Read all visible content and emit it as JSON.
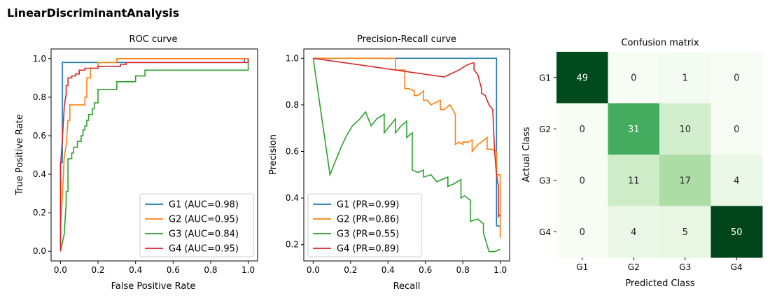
{
  "suptitle": "LinearDiscriminantAnalysis",
  "colors": {
    "G1": "#1f77b4",
    "G2": "#ff7f0e",
    "G3": "#2ca02c",
    "G4": "#d62728"
  },
  "chart_data": [
    {
      "type": "line",
      "title": "ROC curve",
      "xlabel": "False Positive Rate",
      "ylabel": "True Positive Rate",
      "xlim": [
        -0.05,
        1.05
      ],
      "ylim": [
        -0.05,
        1.05
      ],
      "xticks": [
        "0.0",
        "0.2",
        "0.4",
        "0.6",
        "0.8",
        "1.0"
      ],
      "yticks": [
        "0.0",
        "0.2",
        "0.4",
        "0.6",
        "0.8",
        "1.0"
      ],
      "legend_position": "lower right",
      "series": [
        {
          "name": "G1 (AUC=0.98)",
          "x": [
            0,
            0,
            0.01,
            0.01,
            0.98,
            0.98,
            1.0
          ],
          "y": [
            0,
            0.46,
            0.46,
            0.98,
            0.98,
            1.0,
            1.0
          ]
        },
        {
          "name": "G2 (AUC=0.95)",
          "x": [
            0,
            0.0,
            0.01,
            0.02,
            0.03,
            0.04,
            0.05,
            0.05,
            0.13,
            0.13,
            0.14,
            0.14,
            0.16,
            0.16,
            0.2,
            0.2,
            0.3,
            0.3,
            1.0
          ],
          "y": [
            0,
            0.12,
            0.29,
            0.49,
            0.55,
            0.68,
            0.68,
            0.76,
            0.76,
            0.8,
            0.8,
            0.9,
            0.9,
            0.95,
            0.95,
            0.98,
            0.98,
            1.0,
            1.0
          ]
        },
        {
          "name": "G3 (AUC=0.84)",
          "x": [
            0,
            0.02,
            0.03,
            0.03,
            0.04,
            0.04,
            0.06,
            0.06,
            0.07,
            0.07,
            0.09,
            0.09,
            0.11,
            0.11,
            0.12,
            0.12,
            0.13,
            0.13,
            0.14,
            0.14,
            0.15,
            0.15,
            0.17,
            0.17,
            0.18,
            0.18,
            0.2,
            0.2,
            0.3,
            0.3,
            0.4,
            0.4,
            0.45,
            0.45,
            1.0,
            1.0
          ],
          "y": [
            0,
            0.09,
            0.25,
            0.31,
            0.31,
            0.48,
            0.48,
            0.51,
            0.51,
            0.54,
            0.54,
            0.57,
            0.57,
            0.6,
            0.6,
            0.63,
            0.63,
            0.65,
            0.65,
            0.68,
            0.68,
            0.71,
            0.71,
            0.74,
            0.74,
            0.77,
            0.77,
            0.84,
            0.84,
            0.88,
            0.88,
            0.91,
            0.91,
            0.94,
            0.94,
            1.0
          ]
        },
        {
          "name": "G4 (AUC=0.95)",
          "x": [
            0,
            0.0,
            0.01,
            0.02,
            0.03,
            0.03,
            0.04,
            0.04,
            0.06,
            0.06,
            0.08,
            0.08,
            0.1,
            0.1,
            0.13,
            0.13,
            0.2,
            0.2,
            0.32,
            0.32,
            0.35,
            0.35,
            1.0,
            1.0
          ],
          "y": [
            0,
            0.44,
            0.58,
            0.75,
            0.82,
            0.86,
            0.86,
            0.9,
            0.9,
            0.91,
            0.91,
            0.92,
            0.92,
            0.94,
            0.94,
            0.95,
            0.95,
            0.96,
            0.96,
            0.97,
            0.97,
            0.98,
            0.98,
            1.0
          ]
        }
      ]
    },
    {
      "type": "line",
      "title": "Precision-Recall curve",
      "xlabel": "Recall",
      "ylabel": "Precision",
      "xlim": [
        -0.05,
        1.05
      ],
      "ylim": [
        0.13,
        1.04
      ],
      "xticks": [
        "0.0",
        "0.2",
        "0.4",
        "0.6",
        "0.8",
        "1.0"
      ],
      "yticks": [
        "0.2",
        "0.4",
        "0.6",
        "0.8",
        "1.0"
      ],
      "legend_position": "lower left",
      "series": [
        {
          "name": "G1 (PR=0.99)",
          "x": [
            0,
            0.98,
            0.98,
            0.98,
            1.0
          ],
          "y": [
            1.0,
            1.0,
            0.5,
            0.28,
            0.28
          ]
        },
        {
          "name": "G2 (PR=0.86)",
          "x": [
            0,
            0.44,
            0.44,
            0.46,
            0.49,
            0.49,
            0.51,
            0.54,
            0.54,
            0.56,
            0.59,
            0.59,
            0.61,
            0.63,
            0.68,
            0.68,
            0.7,
            0.73,
            0.76,
            0.76,
            0.78,
            0.8,
            0.8,
            0.83,
            0.85,
            0.85,
            0.88,
            0.9,
            0.93,
            0.93,
            0.95,
            0.98,
            0.98,
            1.0,
            1.0
          ],
          "y": [
            1.0,
            1.0,
            0.95,
            0.95,
            0.95,
            0.87,
            0.87,
            0.86,
            0.84,
            0.84,
            0.86,
            0.82,
            0.82,
            0.8,
            0.82,
            0.78,
            0.78,
            0.8,
            0.76,
            0.63,
            0.64,
            0.63,
            0.64,
            0.64,
            0.65,
            0.6,
            0.63,
            0.64,
            0.66,
            0.61,
            0.61,
            0.6,
            0.5,
            0.5,
            0.23
          ]
        },
        {
          "name": "G3 (PR=0.55)",
          "x": [
            0,
            0.09,
            0.12,
            0.15,
            0.18,
            0.21,
            0.25,
            0.28,
            0.31,
            0.31,
            0.34,
            0.38,
            0.38,
            0.41,
            0.44,
            0.44,
            0.47,
            0.5,
            0.5,
            0.53,
            0.53,
            0.56,
            0.59,
            0.59,
            0.63,
            0.66,
            0.69,
            0.72,
            0.72,
            0.75,
            0.79,
            0.79,
            0.81,
            0.84,
            0.84,
            0.88,
            0.91,
            0.91,
            0.94,
            0.97,
            1.0
          ],
          "y": [
            1.0,
            0.5,
            0.56,
            0.62,
            0.67,
            0.71,
            0.74,
            0.77,
            0.71,
            0.71,
            0.74,
            0.76,
            0.68,
            0.71,
            0.74,
            0.68,
            0.71,
            0.73,
            0.66,
            0.68,
            0.52,
            0.51,
            0.52,
            0.49,
            0.5,
            0.47,
            0.48,
            0.49,
            0.45,
            0.46,
            0.48,
            0.4,
            0.41,
            0.39,
            0.3,
            0.31,
            0.29,
            0.25,
            0.17,
            0.17,
            0.18
          ]
        },
        {
          "name": "G4 (PR=0.89)",
          "x": [
            0,
            0.7,
            0.78,
            0.8,
            0.82,
            0.85,
            0.86,
            0.86,
            0.88,
            0.89,
            0.9,
            0.9,
            0.92,
            0.93,
            0.94,
            0.95,
            0.96,
            0.97,
            0.98,
            0.99,
            0.99,
            1.0
          ],
          "y": [
            1.0,
            0.92,
            0.95,
            0.96,
            0.97,
            0.98,
            0.98,
            0.95,
            0.93,
            0.9,
            0.87,
            0.85,
            0.84,
            0.82,
            0.8,
            0.79,
            0.78,
            0.6,
            0.5,
            0.45,
            0.32,
            0.33
          ]
        }
      ]
    },
    {
      "type": "heatmap",
      "title": "Confusion matrix",
      "xlabel": "Predicted Class",
      "ylabel": "Actual Class",
      "x_categories": [
        "G1",
        "G2",
        "G3",
        "G4"
      ],
      "y_categories": [
        "G1",
        "G2",
        "G3",
        "G4"
      ],
      "values": [
        [
          49,
          0,
          1,
          0
        ],
        [
          0,
          31,
          10,
          0
        ],
        [
          0,
          11,
          17,
          4
        ],
        [
          0,
          4,
          5,
          50
        ]
      ],
      "colormap": "Greens",
      "vmin": 0,
      "vmax": 50
    }
  ]
}
